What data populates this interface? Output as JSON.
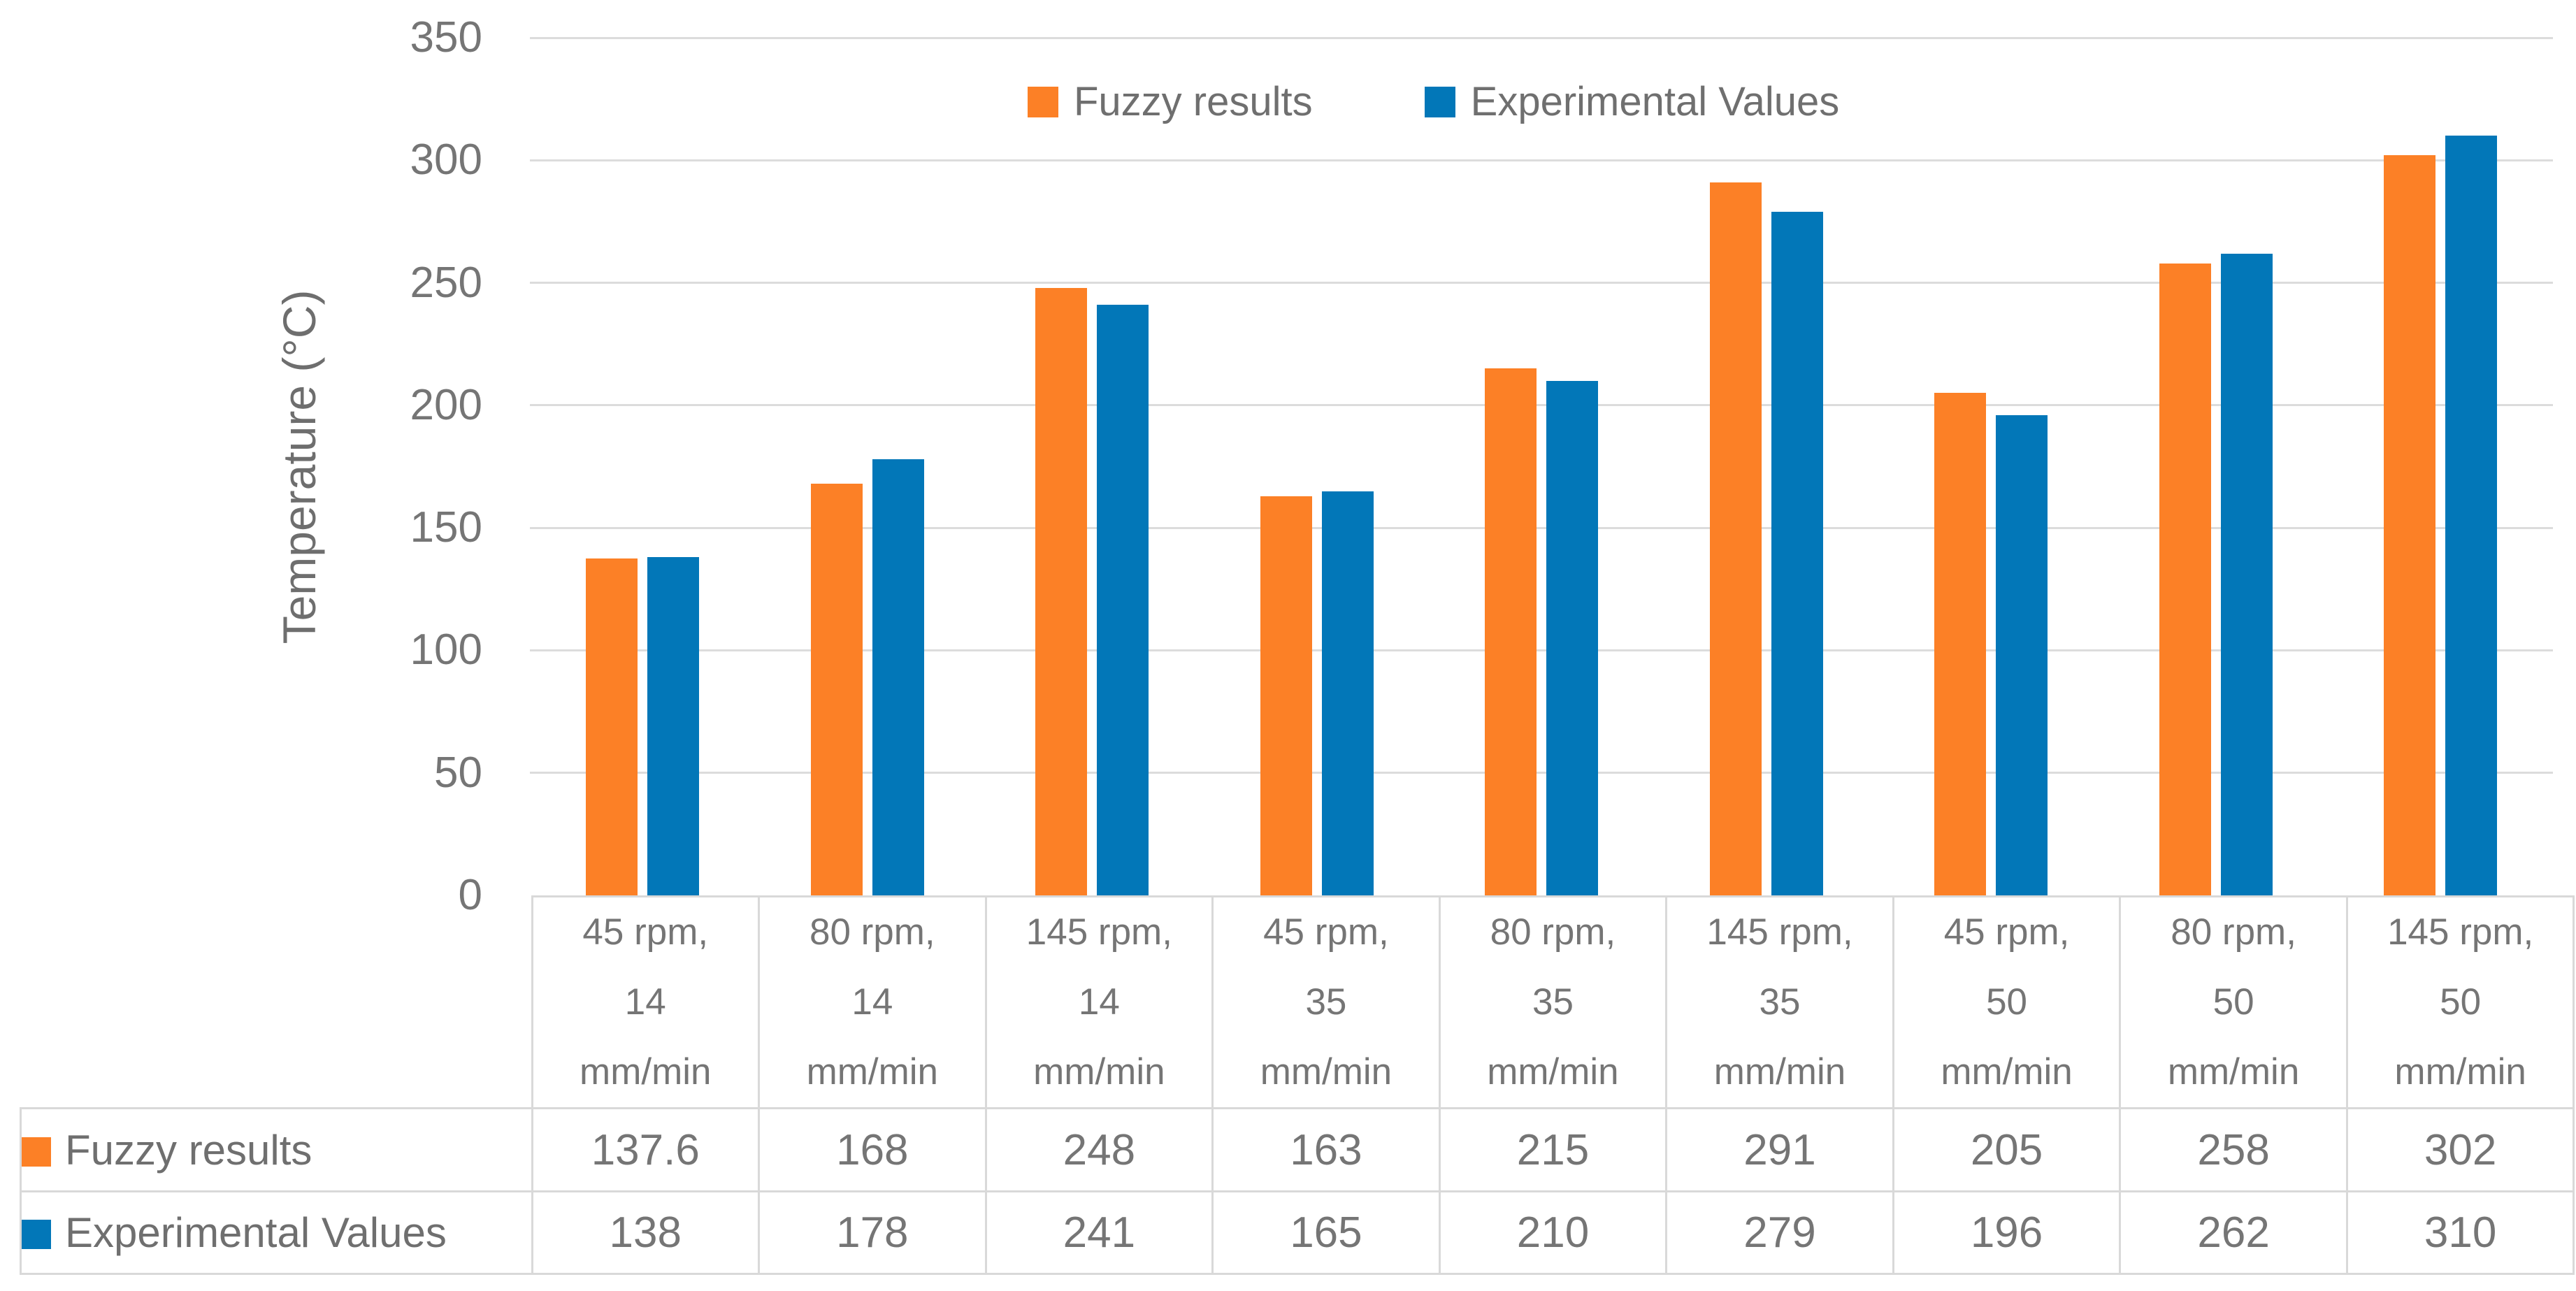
{
  "chart_data": {
    "type": "bar",
    "title": "",
    "xlabel": "",
    "ylabel": "Temperature (°C)",
    "ylim": [
      0,
      350
    ],
    "yticks": [
      0,
      50,
      100,
      150,
      200,
      250,
      300,
      350
    ],
    "grid": true,
    "legend_position": "top",
    "categories": [
      "45 rpm,\n14\nmm/min",
      "80 rpm,\n14\nmm/min",
      "145 rpm,\n14\nmm/min",
      "45 rpm,\n35\nmm/min",
      "80 rpm,\n35\nmm/min",
      "145 rpm,\n35\nmm/min",
      "45 rpm,\n50\nmm/min",
      "80 rpm,\n50\nmm/min",
      "145 rpm,\n50\nmm/min"
    ],
    "series": [
      {
        "name": "Fuzzy results",
        "color": "#FC8026",
        "values": [
          137.6,
          168,
          248,
          163,
          215,
          291,
          205,
          258,
          302
        ]
      },
      {
        "name": "Experimental Values",
        "color": "#0277B8",
        "values": [
          138,
          178,
          241,
          165,
          210,
          279,
          196,
          262,
          310
        ]
      }
    ]
  }
}
